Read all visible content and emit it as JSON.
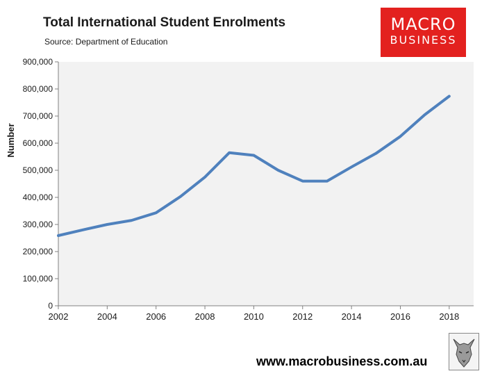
{
  "header": {
    "title": "Total International Student Enrolments",
    "source": "Source: Department of Education"
  },
  "brand": {
    "line1": "MACRO",
    "line2": "BUSINESS",
    "color": "#e3211f"
  },
  "footer": {
    "website": "www.macrobusiness.com.au",
    "logo_icon": "wolf-logo-icon"
  },
  "chart_data": {
    "type": "line",
    "title": "Total International Student Enrolments",
    "ylabel": "Number",
    "xlabel": "",
    "xlim": [
      2002,
      2019
    ],
    "ylim": [
      0,
      900000
    ],
    "x_ticks": [
      2002,
      2004,
      2006,
      2008,
      2010,
      2012,
      2014,
      2016,
      2018
    ],
    "y_ticks": [
      0,
      100000,
      200000,
      300000,
      400000,
      500000,
      600000,
      700000,
      800000,
      900000
    ],
    "y_tick_labels": [
      "0",
      "100,000",
      "200,000",
      "300,000",
      "400,000",
      "500,000",
      "600,000",
      "700,000",
      "800,000",
      "900,000"
    ],
    "grid": false,
    "plot_background": "#f2f2f2",
    "series": [
      {
        "color": "#4f81bd",
        "x": [
          2002,
          2003,
          2004,
          2005,
          2006,
          2007,
          2008,
          2009,
          2010,
          2011,
          2012,
          2013,
          2014,
          2015,
          2016,
          2017,
          2018
        ],
        "values": [
          259000,
          280000,
          300000,
          315000,
          343000,
          403000,
          475000,
          565000,
          555000,
          500000,
          460000,
          460000,
          512000,
          562000,
          625000,
          705000,
          773000
        ]
      }
    ]
  }
}
